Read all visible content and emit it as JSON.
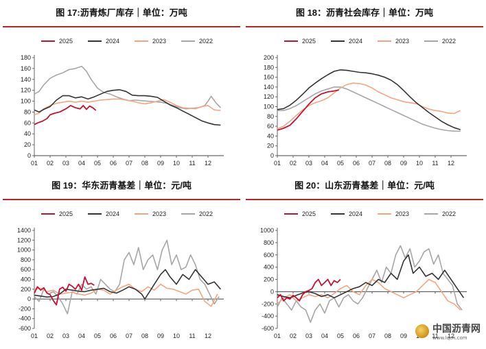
{
  "colors": {
    "2025": "#c8102e",
    "2024": "#333333",
    "2023": "#f4a582",
    "2022": "#a6a6a6"
  },
  "watermark": {
    "text": "中国沥青网",
    "url": "www.lqcn.com"
  },
  "chart_data": [
    {
      "type": "line",
      "title": "图 17:沥青炼厂库存｜单位：万吨",
      "legend": [
        "2025",
        "2024",
        "2023",
        "2022"
      ],
      "x_ticks": [
        "01",
        "02",
        "03",
        "04",
        "05",
        "06",
        "07",
        "08",
        "09",
        "10",
        "11",
        "12"
      ],
      "ylim": [
        0,
        180
      ],
      "y_ticks": [
        0,
        20,
        40,
        60,
        80,
        100,
        120,
        140,
        160,
        180
      ],
      "series": [
        {
          "name": "2025",
          "x": [
            1,
            1.2,
            1.5,
            1.8,
            2.0,
            2.3,
            2.6,
            3.0,
            3.3,
            3.6,
            3.9,
            4.1,
            4.3,
            4.5,
            4.7,
            4.9
          ],
          "values": [
            57,
            60,
            63,
            68,
            75,
            78,
            80,
            86,
            92,
            88,
            86,
            92,
            85,
            91,
            88,
            83
          ]
        },
        {
          "name": "2024",
          "x": [
            1,
            1.3,
            1.6,
            2.0,
            2.4,
            2.8,
            3.2,
            3.6,
            4.0,
            4.4,
            4.8,
            5.2,
            5.6,
            6.0,
            6.4,
            6.8,
            7.2,
            7.6,
            8.0,
            8.4,
            8.8,
            9.2,
            9.6,
            10.0,
            10.4,
            10.8,
            11.2,
            11.6,
            12.0,
            12.4,
            12.8
          ],
          "values": [
            84,
            80,
            85,
            90,
            102,
            110,
            110,
            106,
            108,
            104,
            108,
            113,
            118,
            120,
            121,
            118,
            111,
            110,
            110,
            109,
            107,
            100,
            93,
            88,
            82,
            76,
            70,
            64,
            60,
            57,
            56
          ]
        },
        {
          "name": "2023",
          "x": [
            1,
            1.3,
            1.6,
            2.0,
            2.4,
            2.8,
            3.2,
            3.6,
            4.0,
            4.4,
            4.8,
            5.2,
            5.6,
            6.0,
            6.4,
            6.8,
            7.2,
            7.6,
            8.0,
            8.4,
            8.8,
            9.2,
            9.6,
            10.0,
            10.4,
            10.8,
            11.2,
            11.6,
            12.0,
            12.4,
            12.8
          ],
          "values": [
            75,
            78,
            86,
            92,
            96,
            98,
            100,
            98,
            100,
            98,
            100,
            102,
            103,
            104,
            104,
            102,
            100,
            97,
            95,
            97,
            100,
            103,
            98,
            92,
            88,
            87,
            86,
            90,
            92,
            84,
            83
          ]
        },
        {
          "name": "2022",
          "x": [
            1,
            1.3,
            1.6,
            2.0,
            2.4,
            2.8,
            3.2,
            3.6,
            4.0,
            4.3,
            4.6,
            5.0,
            5.4,
            5.8,
            6.2,
            6.6,
            7.0,
            7.4,
            7.8,
            8.2,
            8.6,
            9.0,
            9.4,
            9.8,
            10.2,
            10.6,
            11.0,
            11.4,
            11.8,
            12.0,
            12.2,
            12.5,
            12.8
          ],
          "values": [
            113,
            118,
            130,
            142,
            148,
            152,
            158,
            160,
            164,
            155,
            140,
            124,
            116,
            113,
            108,
            104,
            101,
            102,
            101,
            100,
            99,
            98,
            96,
            92,
            88,
            86,
            87,
            88,
            92,
            100,
            109,
            97,
            88
          ]
        }
      ]
    },
    {
      "type": "line",
      "title": "图 18：沥青社会库存｜单位：万吨",
      "legend": [
        "2025",
        "2024",
        "2023",
        "2022"
      ],
      "x_ticks": [
        "01",
        "02",
        "03",
        "04",
        "05",
        "06",
        "07",
        "08",
        "09",
        "10",
        "11",
        "12"
      ],
      "ylim": [
        0,
        200
      ],
      "y_ticks": [
        0,
        20,
        40,
        60,
        80,
        100,
        120,
        140,
        160,
        180,
        200
      ],
      "series": [
        {
          "name": "2025",
          "x": [
            1,
            1.4,
            1.8,
            2.2,
            2.6,
            3.0,
            3.4,
            3.8,
            4.2,
            4.6,
            4.9
          ],
          "values": [
            52,
            56,
            62,
            75,
            90,
            105,
            118,
            126,
            130,
            132,
            134
          ]
        },
        {
          "name": "2024",
          "x": [
            1,
            1.4,
            1.8,
            2.2,
            2.6,
            3.0,
            3.4,
            3.8,
            4.2,
            4.6,
            5.0,
            5.4,
            5.8,
            6.2,
            6.6,
            7.0,
            7.4,
            7.8,
            8.2,
            8.6,
            9.0,
            9.4,
            9.8,
            10.2,
            10.6,
            11.0,
            11.4,
            11.8,
            12.2,
            12.6
          ],
          "values": [
            94,
            96,
            103,
            113,
            125,
            138,
            148,
            157,
            165,
            172,
            175,
            174,
            172,
            170,
            169,
            167,
            164,
            160,
            154,
            145,
            133,
            120,
            108,
            98,
            88,
            79,
            70,
            63,
            57,
            53
          ]
        },
        {
          "name": "2023",
          "x": [
            1,
            1.4,
            1.8,
            2.2,
            2.6,
            3.0,
            3.4,
            3.8,
            4.2,
            4.6,
            5.0,
            5.4,
            5.8,
            6.2,
            6.6,
            7.0,
            7.4,
            7.8,
            8.2,
            8.6,
            9.0,
            9.4,
            9.8,
            10.2,
            10.6,
            11.0,
            11.4,
            11.8,
            12.2,
            12.6
          ],
          "values": [
            55,
            60,
            70,
            82,
            93,
            102,
            108,
            112,
            118,
            128,
            138,
            145,
            148,
            147,
            144,
            138,
            130,
            124,
            118,
            114,
            110,
            108,
            106,
            100,
            95,
            92,
            90,
            87,
            86,
            92
          ]
        },
        {
          "name": "2022",
          "x": [
            1,
            1.4,
            1.8,
            2.2,
            2.6,
            3.0,
            3.4,
            3.8,
            4.2,
            4.6,
            5.0,
            5.4,
            5.8,
            6.2,
            6.6,
            7.0,
            7.4,
            7.8,
            8.2,
            8.6,
            9.0,
            9.4,
            9.8,
            10.2,
            10.6,
            11.0,
            11.4,
            11.8,
            12.2,
            12.6
          ],
          "values": [
            92,
            92,
            96,
            102,
            110,
            118,
            126,
            132,
            136,
            140,
            140,
            136,
            130,
            124,
            118,
            112,
            106,
            100,
            94,
            88,
            82,
            76,
            70,
            64,
            60,
            56,
            53,
            51,
            50,
            50
          ]
        }
      ]
    },
    {
      "type": "line",
      "title": "图 19：华东沥青基差｜单位：元/吨",
      "legend": [
        "2025",
        "2024",
        "2023",
        "2022"
      ],
      "x_ticks": [
        "01",
        "02",
        "03",
        "04",
        "05",
        "06",
        "07",
        "08",
        "09",
        "10",
        "11",
        "12"
      ],
      "ylim": [
        -600,
        1400
      ],
      "y_ticks": [
        -600,
        -400,
        -200,
        0,
        200,
        400,
        600,
        800,
        1000,
        1200,
        1400
      ],
      "series": [
        {
          "name": "2025",
          "x": [
            1,
            1.2,
            1.4,
            1.6,
            1.8,
            2.0,
            2.2,
            2.4,
            2.6,
            2.8,
            3.0,
            3.2,
            3.4,
            3.6,
            3.8,
            4.0,
            4.2,
            4.4,
            4.6,
            4.8
          ],
          "values": [
            120,
            250,
            180,
            230,
            120,
            90,
            -30,
            -120,
            200,
            240,
            160,
            300,
            260,
            200,
            300,
            180,
            450,
            300,
            320,
            280
          ]
        },
        {
          "name": "2024",
          "x": [
            1,
            1.4,
            1.8,
            2.2,
            2.6,
            3.0,
            3.4,
            3.8,
            4.2,
            4.6,
            5.0,
            5.4,
            5.8,
            6.2,
            6.6,
            7.0,
            7.4,
            7.8,
            8.0,
            8.3,
            8.6,
            9.0,
            9.3,
            9.6,
            10.0,
            10.4,
            10.8,
            11.2,
            11.6,
            12.0,
            12.4,
            12.8
          ],
          "values": [
            80,
            60,
            40,
            50,
            100,
            200,
            180,
            160,
            150,
            180,
            200,
            220,
            150,
            120,
            180,
            250,
            200,
            100,
            0,
            150,
            300,
            500,
            600,
            450,
            300,
            500,
            400,
            600,
            450,
            300,
            350,
            200
          ]
        },
        {
          "name": "2023",
          "x": [
            1,
            1.4,
            1.8,
            2.2,
            2.6,
            3.0,
            3.4,
            3.8,
            4.2,
            4.6,
            5.0,
            5.4,
            5.8,
            6.2,
            6.6,
            7.0,
            7.4,
            7.8,
            8.2,
            8.6,
            9.0,
            9.4,
            9.8,
            10.2,
            10.6,
            11.0,
            11.4,
            11.8,
            12.2,
            12.6
          ],
          "values": [
            200,
            220,
            150,
            180,
            100,
            120,
            140,
            100,
            80,
            120,
            200,
            180,
            100,
            180,
            250,
            300,
            200,
            150,
            250,
            180,
            300,
            220,
            200,
            150,
            100,
            180,
            200,
            -50,
            -150,
            100
          ]
        },
        {
          "name": "2022",
          "x": [
            1,
            1.3,
            1.6,
            1.9,
            2.2,
            2.5,
            2.8,
            3.1,
            3.4,
            3.7,
            4.0,
            4.3,
            4.6,
            4.9,
            5.2,
            5.5,
            5.8,
            6.1,
            6.4,
            6.7,
            7.0,
            7.3,
            7.6,
            7.9,
            8.2,
            8.5,
            8.8,
            9.1,
            9.4,
            9.7,
            10.0,
            10.3,
            10.6,
            10.9,
            11.2,
            11.5,
            11.8,
            12.1,
            12.4,
            12.7
          ],
          "values": [
            50,
            -50,
            200,
            100,
            150,
            50,
            -100,
            -300,
            150,
            100,
            300,
            200,
            250,
            100,
            400,
            300,
            200,
            150,
            300,
            800,
            950,
            700,
            1050,
            600,
            800,
            900,
            600,
            1000,
            1200,
            700,
            900,
            600,
            650,
            900,
            700,
            400,
            300,
            100,
            -100,
            50
          ]
        }
      ]
    },
    {
      "type": "line",
      "title": "图 20：山东沥青基差｜单位：元/吨",
      "legend": [
        "2025",
        "2024",
        "2023",
        "2022"
      ],
      "x_ticks": [
        "01",
        "02",
        "03",
        "04",
        "05",
        "06",
        "07",
        "08",
        "09",
        "10",
        "11",
        "12"
      ],
      "ylim": [
        -600,
        1000
      ],
      "y_ticks": [
        -600,
        -400,
        -200,
        0,
        200,
        400,
        600,
        800,
        1000
      ],
      "series": [
        {
          "name": "2025",
          "x": [
            1,
            1.2,
            1.4,
            1.6,
            1.8,
            2.0,
            2.2,
            2.4,
            2.6,
            2.8,
            3.0,
            3.2,
            3.4,
            3.6,
            3.8,
            4.0,
            4.2,
            4.4,
            4.6,
            4.8,
            5.0
          ],
          "values": [
            -100,
            -50,
            -150,
            -100,
            -120,
            -60,
            -100,
            -150,
            -50,
            0,
            20,
            50,
            150,
            200,
            100,
            150,
            200,
            100,
            180,
            150,
            200
          ]
        },
        {
          "name": "2024",
          "x": [
            1,
            1.4,
            1.8,
            2.2,
            2.6,
            3.0,
            3.4,
            3.8,
            4.2,
            4.6,
            5.0,
            5.4,
            5.8,
            6.2,
            6.6,
            7.0,
            7.4,
            7.8,
            8.2,
            8.6,
            9.0,
            9.3,
            9.6,
            10.0,
            10.4,
            10.8,
            11.2,
            11.6,
            12.0,
            12.4,
            12.8
          ],
          "values": [
            -50,
            -80,
            -100,
            -60,
            -20,
            0,
            -30,
            -80,
            -50,
            -100,
            -50,
            0,
            50,
            80,
            150,
            100,
            200,
            150,
            300,
            200,
            500,
            600,
            300,
            400,
            250,
            300,
            200,
            350,
            200,
            50,
            -100
          ]
        },
        {
          "name": "2023",
          "x": [
            1,
            1.4,
            1.8,
            2.2,
            2.6,
            3.0,
            3.4,
            3.8,
            4.2,
            4.6,
            5.0,
            5.4,
            5.8,
            6.2,
            6.6,
            7.0,
            7.4,
            7.8,
            8.2,
            8.6,
            9.0,
            9.4,
            9.8,
            10.2,
            10.6,
            11.0,
            11.4,
            11.8,
            12.2,
            12.6
          ],
          "values": [
            -200,
            -100,
            -50,
            -150,
            -100,
            -50,
            -80,
            -50,
            -100,
            -30,
            50,
            100,
            0,
            -50,
            100,
            200,
            150,
            50,
            0,
            -50,
            -100,
            -50,
            0,
            100,
            200,
            150,
            0,
            -150,
            -200,
            -300
          ]
        },
        {
          "name": "2022",
          "x": [
            1,
            1.3,
            1.6,
            1.9,
            2.2,
            2.5,
            2.8,
            3.1,
            3.4,
            3.7,
            4.0,
            4.3,
            4.6,
            4.9,
            5.2,
            5.5,
            5.8,
            6.1,
            6.4,
            6.7,
            7.0,
            7.3,
            7.6,
            7.9,
            8.2,
            8.5,
            8.8,
            9.1,
            9.4,
            9.7,
            10.0,
            10.3,
            10.6,
            10.9,
            11.2,
            11.5,
            11.8,
            12.1,
            12.4,
            12.7
          ],
          "values": [
            -250,
            -100,
            -200,
            -300,
            -150,
            -250,
            -300,
            -500,
            -300,
            -200,
            -350,
            -150,
            -100,
            -250,
            -100,
            -50,
            -150,
            -200,
            -100,
            50,
            200,
            350,
            150,
            400,
            300,
            600,
            750,
            550,
            700,
            400,
            500,
            650,
            700,
            450,
            600,
            300,
            200,
            100,
            -200,
            -300
          ]
        }
      ]
    }
  ]
}
